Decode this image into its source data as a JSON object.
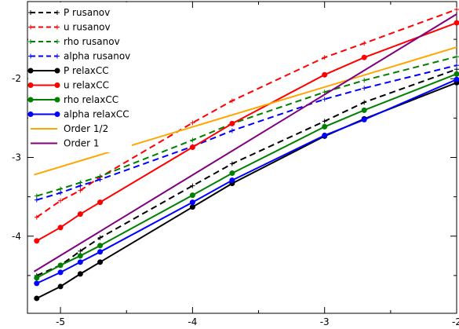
{
  "chart_data": {
    "type": "line",
    "title": "",
    "xlabel": "",
    "ylabel": "",
    "xlim": [
      -5.25,
      -2.0
    ],
    "ylim": [
      -4.98,
      -1.02
    ],
    "grid": false,
    "legend_position": "top-left",
    "x_ticks": [
      "-5",
      "-4",
      "-3",
      "-2"
    ],
    "y_ticks": [
      "-4",
      "-3",
      "-2"
    ],
    "x_tick_values": [
      -5,
      -4,
      -3,
      -2
    ],
    "y_tick_values": [
      -4,
      -3,
      -2
    ],
    "series": [
      {
        "name": "P rusanov",
        "color": "#000000",
        "style": "dashed",
        "marker": "plus",
        "x": [
          -5.18,
          -5.0,
          -4.85,
          -4.7,
          -4.0,
          -3.7,
          -3.0,
          -2.7,
          -2.0
        ],
        "y": [
          -4.5,
          -4.37,
          -4.19,
          -4.02,
          -3.36,
          -3.08,
          -2.54,
          -2.3,
          -1.88
        ]
      },
      {
        "name": "u rusanov",
        "color": "#ff0000",
        "style": "dashed",
        "marker": "plus",
        "x": [
          -5.18,
          -5.0,
          -4.85,
          -4.7,
          -4.0,
          -3.7,
          -3.0,
          -2.7,
          -2.0
        ],
        "y": [
          -3.76,
          -3.55,
          -3.42,
          -3.25,
          -2.56,
          -2.28,
          -1.73,
          -1.55,
          -1.12
        ]
      },
      {
        "name": "rho rusanov",
        "color": "#008000",
        "style": "dashed",
        "marker": "plus",
        "x": [
          -5.18,
          -5.0,
          -4.85,
          -4.7,
          -4.0,
          -3.7,
          -3.0,
          -2.7,
          -2.0
        ],
        "y": [
          -3.49,
          -3.4,
          -3.32,
          -3.24,
          -2.78,
          -2.57,
          -2.17,
          -2.02,
          -1.72
        ]
      },
      {
        "name": "alpha rusanov",
        "color": "#0000ff",
        "style": "dashed",
        "marker": "plus",
        "x": [
          -5.18,
          -5.0,
          -4.85,
          -4.7,
          -4.0,
          -3.7,
          -3.0,
          -2.7,
          -2.0
        ],
        "y": [
          -3.54,
          -3.45,
          -3.36,
          -3.28,
          -2.86,
          -2.66,
          -2.26,
          -2.12,
          -1.83
        ]
      },
      {
        "name": "P relaxCC",
        "color": "#000000",
        "style": "solid",
        "marker": "circle",
        "x": [
          -5.18,
          -5.0,
          -4.85,
          -4.7,
          -4.0,
          -3.7,
          -3.0,
          -2.7,
          -2.0
        ],
        "y": [
          -4.79,
          -4.64,
          -4.48,
          -4.33,
          -3.63,
          -3.33,
          -2.73,
          -2.51,
          -2.05
        ]
      },
      {
        "name": "u relaxCC",
        "color": "#ff0000",
        "style": "solid",
        "marker": "circle",
        "x": [
          -5.18,
          -5.0,
          -4.85,
          -4.7,
          -4.0,
          -3.7,
          -3.0,
          -2.7,
          -2.0
        ],
        "y": [
          -4.06,
          -3.89,
          -3.72,
          -3.57,
          -2.87,
          -2.57,
          -1.95,
          -1.73,
          -1.29
        ]
      },
      {
        "name": "rho relaxCC",
        "color": "#008000",
        "style": "solid",
        "marker": "circle",
        "x": [
          -5.18,
          -5.0,
          -4.85,
          -4.7,
          -4.0,
          -3.7,
          -3.0,
          -2.7,
          -2.0
        ],
        "y": [
          -4.53,
          -4.37,
          -4.25,
          -4.12,
          -3.48,
          -3.2,
          -2.61,
          -2.4,
          -1.94
        ]
      },
      {
        "name": "alpha relaxCC",
        "color": "#0000ff",
        "style": "solid",
        "marker": "circle",
        "x": [
          -5.18,
          -5.0,
          -4.85,
          -4.7,
          -4.0,
          -3.7,
          -3.0,
          -2.7,
          -2.0
        ],
        "y": [
          -4.6,
          -4.46,
          -4.33,
          -4.2,
          -3.57,
          -3.29,
          -2.72,
          -2.52,
          -2.01
        ]
      },
      {
        "name": "Order 1/2",
        "color": "#ffa500",
        "style": "solid",
        "marker": "none",
        "x": [
          -5.2,
          -2.0
        ],
        "y": [
          -3.22,
          -1.6
        ]
      },
      {
        "name": "Order 1",
        "color": "#800080",
        "style": "solid",
        "marker": "none",
        "x": [
          -5.2,
          -2.0
        ],
        "y": [
          -4.45,
          -1.18
        ]
      }
    ]
  }
}
